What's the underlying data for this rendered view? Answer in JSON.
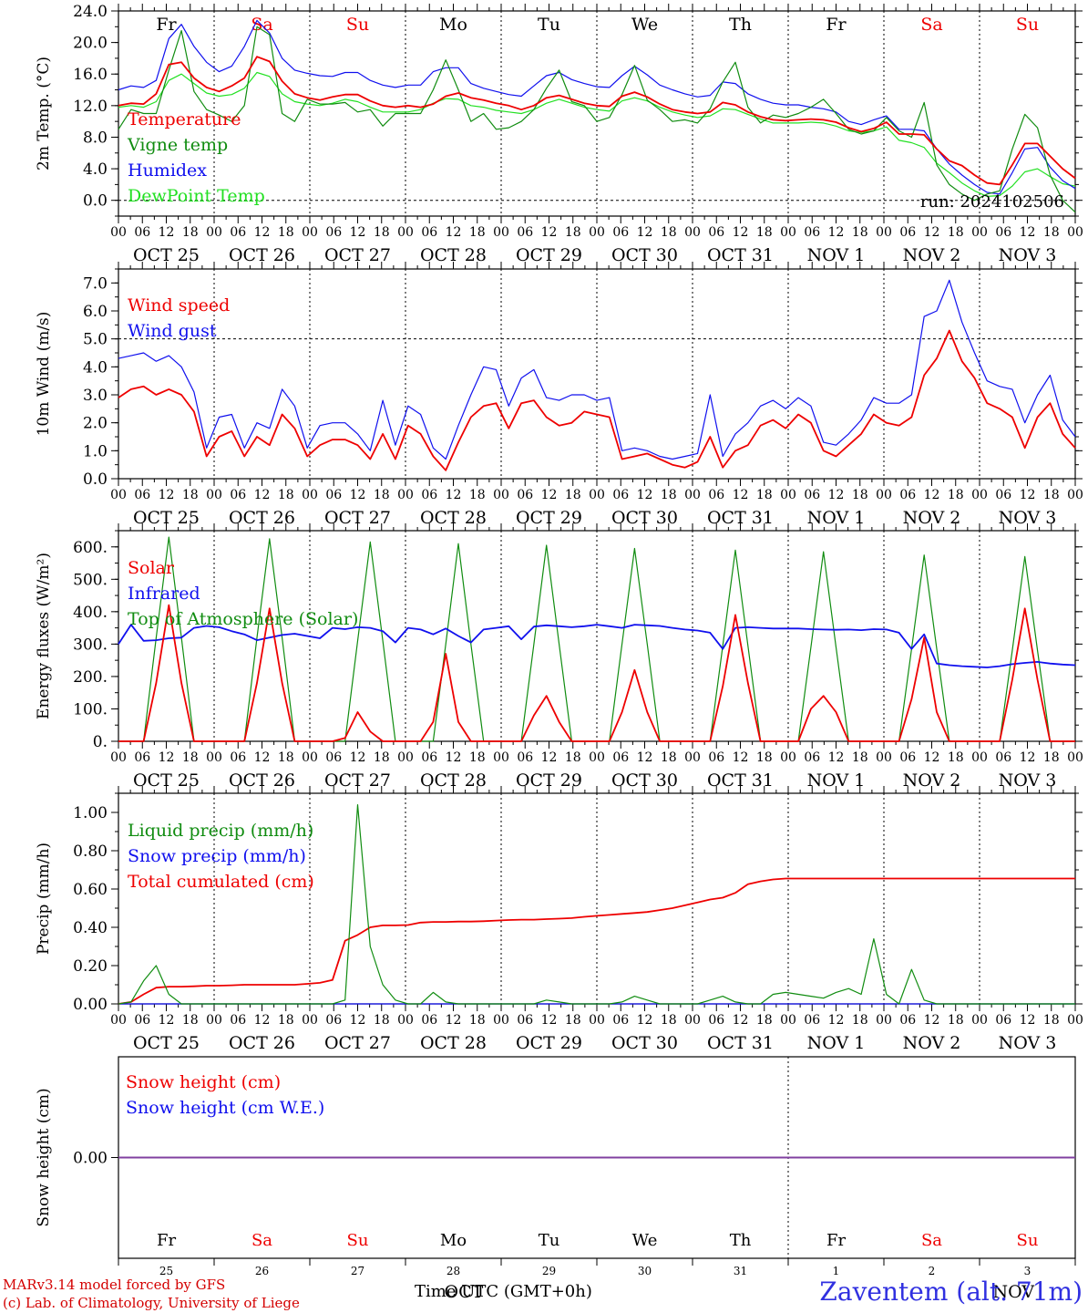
{
  "footer": {
    "credit_line1": "MARv3.14 model forced by GFS",
    "credit_line2": "(c) Lab. of Climatology, University of Liege",
    "x_axis_title": "Time UTC (GMT+0h)",
    "station": "Zaventem (alt. 71m)",
    "bottom_months": [
      "OCT",
      "NOV"
    ]
  },
  "colors": {
    "red": "#ee0000",
    "green": "#108c10",
    "blue": "#1010ee",
    "light_green": "#22e022",
    "purple": "#8040a0"
  },
  "days": {
    "weekday_labels": [
      "Fr",
      "Sa",
      "Su",
      "Mo",
      "Tu",
      "We",
      "Th",
      "Fr",
      "Sa",
      "Su"
    ],
    "weekend_flags": [
      false,
      true,
      true,
      false,
      false,
      false,
      false,
      false,
      true,
      true
    ],
    "date_labels": [
      "OCT 25",
      "OCT 26",
      "OCT 27",
      "OCT 28",
      "OCT 29",
      "OCT 30",
      "OCT 31",
      "NOV 1",
      "NOV 2",
      "NOV 3"
    ],
    "day_numbers": [
      "25",
      "26",
      "27",
      "28",
      "29",
      "30",
      "31",
      "1",
      "2",
      "3"
    ],
    "hour_ticks": [
      "00",
      "06",
      "12",
      "18"
    ],
    "final_tick": "00"
  },
  "chart_data": [
    {
      "type": "line",
      "ylabel": "2m Temp. (°C)",
      "ylim": [
        -2,
        24
      ],
      "yticks": [
        "0.0",
        "4.0",
        "8.0",
        "12.0",
        "16.0",
        "20.0",
        "24.0"
      ],
      "run_label": "run: 2024102506",
      "x_unit": "hours since OCT 25 00 UTC, 3-hourly",
      "series": [
        {
          "name": "Temperature",
          "color": "red",
          "values": [
            12,
            12.3,
            12.2,
            13.5,
            17.2,
            17.5,
            15.5,
            14.3,
            13.8,
            14.5,
            15.5,
            18.2,
            17.6,
            15.1,
            13.5,
            13.0,
            12.7,
            13.1,
            13.4,
            13.4,
            12.6,
            12.0,
            11.8,
            12.0,
            11.8,
            12.2,
            13.2,
            13.6,
            13.0,
            12.7,
            12.3,
            12.0,
            11.5,
            12.0,
            13.0,
            13.3,
            12.8,
            12.3,
            12.0,
            11.9,
            13.2,
            13.7,
            13.1,
            12.2,
            11.5,
            11.2,
            11.0,
            11.2,
            12.4,
            12.1,
            11.2,
            10.6,
            10.2,
            10.1,
            10.2,
            10.3,
            10.2,
            9.9,
            9.2,
            8.7,
            9.1,
            9.9,
            8.4,
            8.4,
            8.3,
            6.5,
            5.0,
            4.4,
            3.2,
            2.2,
            2.0,
            4.5,
            7.2,
            7.2,
            5.6,
            4.0,
            2.8
          ]
        },
        {
          "name": "Vigne temp",
          "color": "green",
          "values": [
            9,
            11.5,
            11.0,
            11.0,
            16.5,
            21.5,
            13.8,
            11.5,
            10.8,
            10.0,
            12.0,
            22.0,
            21.0,
            11.0,
            10.0,
            12.8,
            12.2,
            12.2,
            12.4,
            11.2,
            11.5,
            9.4,
            11.0,
            11.0,
            11.0,
            14.0,
            17.8,
            14.0,
            10.0,
            11.0,
            9.0,
            9.2,
            10.0,
            11.5,
            14.2,
            16.5,
            12.5,
            12.0,
            10.0,
            10.5,
            13.4,
            17.1,
            12.7,
            11.5,
            10.0,
            10.2,
            9.8,
            11.6,
            15.0,
            17.5,
            11.8,
            9.8,
            10.8,
            10.5,
            11.0,
            11.8,
            12.8,
            11.0,
            9.0,
            8.4,
            8.8,
            10.5,
            8.8,
            8.0,
            12.4,
            4.5,
            2.0,
            0.8,
            0.0,
            0.8,
            1.2,
            6.5,
            10.9,
            9.2,
            3.2,
            0.0,
            -1.5
          ]
        },
        {
          "name": "Humidex",
          "color": "blue",
          "values": [
            14,
            14.5,
            14.3,
            15.2,
            20.5,
            22.3,
            19.5,
            17.5,
            16.3,
            17.0,
            19.5,
            22.8,
            21.2,
            18.0,
            16.5,
            16.1,
            15.8,
            15.7,
            16.2,
            16.2,
            15.2,
            14.6,
            14.3,
            14.6,
            14.6,
            16.3,
            16.8,
            16.8,
            14.8,
            14.2,
            13.8,
            13.4,
            13.2,
            14.5,
            15.8,
            16.2,
            15.3,
            14.8,
            14.4,
            14.3,
            15.8,
            17.0,
            15.9,
            14.6,
            14.0,
            13.5,
            13.1,
            13.3,
            15.0,
            14.8,
            13.5,
            12.8,
            12.3,
            12.1,
            12.1,
            11.8,
            11.6,
            11.2,
            10.0,
            9.6,
            10.2,
            10.7,
            9.0,
            9.0,
            8.8,
            6.5,
            4.6,
            3.2,
            2.0,
            1.0,
            0.8,
            3.5,
            6.5,
            6.7,
            4.2,
            2.5,
            1.5
          ]
        },
        {
          "name": "DewPoint Temp",
          "color": "light_green",
          "values": [
            11.8,
            12.0,
            11.8,
            12.5,
            15.2,
            16.0,
            14.8,
            13.6,
            13.2,
            13.4,
            14.2,
            16.2,
            15.7,
            13.5,
            12.5,
            12.2,
            12.0,
            12.3,
            12.8,
            12.5,
            11.8,
            11.2,
            11.2,
            11.2,
            11.5,
            12.3,
            12.9,
            12.8,
            12.0,
            11.8,
            11.4,
            11.2,
            11.0,
            11.5,
            12.3,
            12.8,
            12.3,
            11.8,
            11.5,
            11.3,
            12.6,
            13.0,
            12.6,
            11.8,
            11.2,
            10.8,
            10.5,
            10.7,
            11.6,
            11.5,
            10.9,
            10.3,
            9.8,
            9.8,
            9.8,
            9.9,
            9.8,
            9.4,
            8.8,
            8.6,
            8.8,
            9.3,
            7.6,
            7.3,
            6.7,
            4.7,
            3.5,
            2.2,
            1.2,
            0.5,
            0.6,
            1.8,
            3.6,
            4.0,
            3.0,
            2.1,
            1.8
          ]
        }
      ]
    },
    {
      "type": "line",
      "ylabel": "10m Wind (m/s)",
      "ylim": [
        0,
        7.5
      ],
      "yticks": [
        "0.0",
        "1.0",
        "2.0",
        "3.0",
        "4.0",
        "5.0",
        "6.0",
        "7.0"
      ],
      "reference_line": 5.0,
      "series": [
        {
          "name": "Wind speed",
          "color": "red",
          "values": [
            2.9,
            3.2,
            3.3,
            3.0,
            3.2,
            3.0,
            2.4,
            0.8,
            1.5,
            1.7,
            0.8,
            1.5,
            1.2,
            2.3,
            1.8,
            0.8,
            1.2,
            1.4,
            1.4,
            1.2,
            0.7,
            1.6,
            0.7,
            1.9,
            1.6,
            0.8,
            0.3,
            1.3,
            2.2,
            2.6,
            2.7,
            1.8,
            2.7,
            2.8,
            2.2,
            1.9,
            2.0,
            2.4,
            2.3,
            2.2,
            0.7,
            0.8,
            0.9,
            0.7,
            0.5,
            0.4,
            0.6,
            1.5,
            0.4,
            1.0,
            1.2,
            1.9,
            2.1,
            1.8,
            2.3,
            2.0,
            1.0,
            0.8,
            1.2,
            1.6,
            2.3,
            2.0,
            1.9,
            2.2,
            3.7,
            4.3,
            5.3,
            4.2,
            3.6,
            2.7,
            2.5,
            2.2,
            1.1,
            2.2,
            2.7,
            1.6,
            1.1
          ]
        },
        {
          "name": "Wind gust",
          "color": "blue",
          "values": [
            4.3,
            4.4,
            4.5,
            4.2,
            4.4,
            4.0,
            3.1,
            1.1,
            2.2,
            2.3,
            1.1,
            2.0,
            1.8,
            3.2,
            2.6,
            1.1,
            1.9,
            2.0,
            2.0,
            1.6,
            1.0,
            2.8,
            1.2,
            2.6,
            2.3,
            1.1,
            0.7,
            1.9,
            3.0,
            4.0,
            3.9,
            2.6,
            3.6,
            3.9,
            2.9,
            2.8,
            3.0,
            3.0,
            2.8,
            2.9,
            1.0,
            1.1,
            1.0,
            0.8,
            0.7,
            0.8,
            0.9,
            3.0,
            0.8,
            1.6,
            2.0,
            2.6,
            2.8,
            2.5,
            2.9,
            2.6,
            1.3,
            1.2,
            1.6,
            2.1,
            2.9,
            2.7,
            2.7,
            3.0,
            5.8,
            6.0,
            7.1,
            5.6,
            4.5,
            3.5,
            3.3,
            3.2,
            2.0,
            3.0,
            3.7,
            2.1,
            1.5
          ]
        }
      ]
    },
    {
      "type": "line",
      "ylabel": "Energy fluxes (W/m²)",
      "ylim": [
        0,
        650
      ],
      "yticks": [
        "0.",
        "100.",
        "200.",
        "300.",
        "400.",
        "500.",
        "600."
      ],
      "series": [
        {
          "name": "Solar",
          "color": "red",
          "values": [
            0,
            0,
            0,
            180,
            420,
            180,
            0,
            0,
            0,
            0,
            0,
            180,
            410,
            180,
            0,
            0,
            0,
            0,
            10,
            90,
            30,
            0,
            0,
            0,
            0,
            60,
            270,
            60,
            0,
            0,
            0,
            0,
            0,
            80,
            140,
            60,
            0,
            0,
            0,
            0,
            90,
            220,
            90,
            0,
            0,
            0,
            0,
            0,
            170,
            390,
            180,
            0,
            0,
            0,
            0,
            100,
            140,
            90,
            0,
            0,
            0,
            0,
            0,
            130,
            320,
            90,
            0,
            0,
            0,
            0,
            0,
            190,
            410,
            190,
            0,
            0,
            0
          ]
        },
        {
          "name": "Infrared",
          "color": "blue",
          "values": [
            300,
            360,
            310,
            312,
            318,
            320,
            350,
            356,
            352,
            340,
            330,
            312,
            320,
            328,
            332,
            325,
            318,
            350,
            346,
            352,
            350,
            340,
            305,
            350,
            345,
            330,
            348,
            325,
            305,
            345,
            350,
            355,
            315,
            354,
            358,
            355,
            352,
            355,
            360,
            355,
            350,
            360,
            358,
            356,
            350,
            345,
            342,
            335,
            285,
            350,
            352,
            350,
            348,
            348,
            348,
            346,
            345,
            344,
            345,
            343,
            346,
            345,
            335,
            285,
            330,
            240,
            235,
            232,
            230,
            228,
            232,
            238,
            242,
            245,
            240,
            237,
            235
          ]
        },
        {
          "name": "Top of Atmosphere (Solar)",
          "color": "green",
          "values": [
            0,
            0,
            0,
            320,
            630,
            320,
            0,
            0,
            0,
            0,
            0,
            320,
            625,
            320,
            0,
            0,
            0,
            0,
            0,
            310,
            615,
            310,
            0,
            0,
            0,
            0,
            300,
            610,
            300,
            0,
            0,
            0,
            0,
            300,
            605,
            300,
            0,
            0,
            0,
            0,
            300,
            595,
            300,
            0,
            0,
            0,
            0,
            0,
            295,
            590,
            295,
            0,
            0,
            0,
            0,
            290,
            585,
            290,
            0,
            0,
            0,
            0,
            0,
            285,
            575,
            285,
            0,
            0,
            0,
            0,
            0,
            280,
            570,
            280,
            0,
            0,
            0
          ]
        }
      ]
    },
    {
      "type": "line",
      "ylabel": "Precip (mm/h)",
      "ylim": [
        0,
        1.1
      ],
      "yticks": [
        "0.00",
        "0.20",
        "0.40",
        "0.60",
        "0.80",
        "1.00"
      ],
      "series": [
        {
          "name": "Liquid precip (mm/h)",
          "color": "green",
          "values": [
            0,
            0.01,
            0.12,
            0.2,
            0.05,
            0,
            0,
            0,
            0,
            0,
            0,
            0,
            0,
            0,
            0,
            0,
            0,
            0,
            0.02,
            1.04,
            0.3,
            0.1,
            0.02,
            0,
            0,
            0.06,
            0.01,
            0,
            0,
            0,
            0,
            0,
            0,
            0,
            0.02,
            0.01,
            0,
            0,
            0,
            0,
            0.01,
            0.04,
            0.02,
            0,
            0,
            0,
            0,
            0.02,
            0.04,
            0.01,
            0,
            0,
            0.05,
            0.06,
            0.05,
            0.04,
            0.03,
            0.06,
            0.08,
            0.05,
            0.34,
            0.05,
            0,
            0.18,
            0.02,
            0,
            0,
            0,
            0,
            0,
            0,
            0,
            0,
            0,
            0,
            0,
            0
          ]
        },
        {
          "name": "Snow precip (mm/h)",
          "color": "blue",
          "values": [
            0,
            0,
            0,
            0,
            0,
            0,
            0,
            0,
            0,
            0,
            0,
            0,
            0,
            0,
            0,
            0,
            0,
            0,
            0,
            0,
            0,
            0,
            0,
            0,
            0,
            0,
            0,
            0,
            0,
            0,
            0,
            0,
            0,
            0,
            0,
            0,
            0,
            0,
            0,
            0,
            0,
            0,
            0,
            0,
            0,
            0,
            0,
            0,
            0,
            0,
            0,
            0,
            0,
            0,
            0,
            0,
            0,
            0,
            0,
            0,
            0,
            0,
            0,
            0,
            0,
            0,
            0,
            0,
            0,
            0,
            0,
            0,
            0,
            0,
            0,
            0,
            0
          ]
        },
        {
          "name": "Total cumulated (cm)",
          "color": "red",
          "values": [
            0,
            0.01,
            0.05,
            0.085,
            0.09,
            0.09,
            0.092,
            0.095,
            0.095,
            0.097,
            0.1,
            0.1,
            0.1,
            0.1,
            0.1,
            0.105,
            0.11,
            0.125,
            0.33,
            0.36,
            0.4,
            0.41,
            0.41,
            0.412,
            0.425,
            0.428,
            0.428,
            0.43,
            0.43,
            0.432,
            0.435,
            0.438,
            0.44,
            0.44,
            0.443,
            0.445,
            0.448,
            0.455,
            0.46,
            0.465,
            0.47,
            0.475,
            0.48,
            0.49,
            0.5,
            0.515,
            0.53,
            0.545,
            0.555,
            0.58,
            0.625,
            0.64,
            0.65,
            0.655,
            0.655,
            0.655,
            0.655,
            0.655,
            0.655,
            0.655,
            0.655,
            0.655,
            0.655,
            0.655,
            0.655,
            0.655,
            0.655,
            0.655,
            0.655,
            0.655,
            0.655,
            0.655,
            0.655,
            0.655,
            0.655,
            0.655,
            0.655
          ]
        }
      ]
    },
    {
      "type": "line",
      "ylabel": "Snow height (cm)",
      "ylim": [
        -1,
        1
      ],
      "yticks": [
        "0.00"
      ],
      "series": [
        {
          "name": "Snow height (cm)",
          "color": "red",
          "values": [
            0,
            0
          ]
        },
        {
          "name": "Snow height (cm W.E.)",
          "color": "blue",
          "values": [
            0,
            0
          ]
        }
      ]
    }
  ]
}
